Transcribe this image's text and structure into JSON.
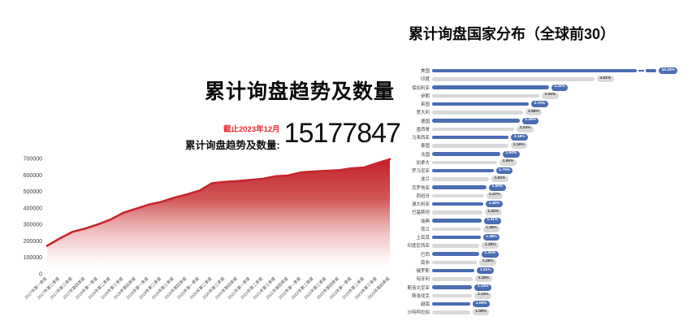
{
  "colors": {
    "bar_blue": "#4a6db3",
    "bar_gray": "#d9d9d9",
    "badge_blue_text": "#ffffff",
    "badge_gray_text": "#3a3a3a",
    "area_red": "#c3232b",
    "line_red": "#c9252c",
    "accent_red_text": "#e4282d",
    "title_text": "#0a0a0a"
  },
  "left_chart": {
    "title": "累计询盘趋势及数量",
    "asof_label": "截止2023年12月",
    "stat_label": "累计询盘趋势及数量:",
    "stat_value": "15177847"
  },
  "right_chart": {
    "title": "累计询盘国家分布（全球前30）"
  },
  "chart_data": [
    {
      "id": "inquiry-trend",
      "type": "area",
      "title": "累计询盘趋势及数量",
      "x": [
        "2017年第一季度",
        "2017年第二季度",
        "2017年第三季度",
        "2017年第四季度",
        "2018年第一季度",
        "2018年第二季度",
        "2018年第三季度",
        "2018年第四季度",
        "2019年第一季度",
        "2019年第二季度",
        "2019年第三季度",
        "2019年第四季度",
        "2020年第一季度",
        "2020年第二季度",
        "2020年第三季度",
        "2020年第四季度",
        "2021年第一季度",
        "2021年第二季度",
        "2021年第三季度",
        "2021年第四季度",
        "2022年第一季度",
        "2022年第二季度",
        "2022年第三季度",
        "2022年第四季度",
        "2023年第一季度",
        "2023年第二季度",
        "2023年第三季度",
        "2023年第四季度"
      ],
      "values": [
        170000,
        215000,
        255000,
        275000,
        300000,
        330000,
        370000,
        395000,
        420000,
        437000,
        462000,
        482000,
        505000,
        550000,
        558000,
        563000,
        570000,
        577000,
        592000,
        597000,
        615000,
        621000,
        625000,
        629000,
        640000,
        646000,
        672000,
        695000
      ],
      "ylim": [
        0,
        700000
      ],
      "yticks": [
        0,
        100000,
        200000,
        300000,
        400000,
        500000,
        600000,
        700000
      ],
      "grid": false,
      "legend": "none",
      "line_color": "#c9252c",
      "fill_style": "vertical red-to-white gradient"
    },
    {
      "id": "inquiry-countries",
      "type": "bar",
      "orientation": "horizontal",
      "title": "累计询盘国家分布（全球前30）",
      "categories": [
        "美国",
        "印度",
        "保加利亚",
        "伊朗",
        "英国",
        "意大利",
        "德国",
        "墨西哥",
        "马来西亚",
        "泰国",
        "法国",
        "加拿大",
        "罗马尼亚",
        "波兰",
        "克罗地亚",
        "西班牙",
        "澳大利亚",
        "巴基斯坦",
        "瑞典",
        "荷兰",
        "土耳其",
        "印度尼西亚",
        "巴西",
        "南非",
        "俄罗斯",
        "匈牙利",
        "斯洛文尼亚",
        "斯洛伐克",
        "越南",
        "沙特阿拉伯"
      ],
      "values": [
        33.18,
        4.62,
        3.32,
        3.05,
        2.75,
        2.58,
        2.49,
        2.34,
        2.18,
        2.16,
        1.94,
        1.85,
        1.75,
        1.62,
        1.55,
        1.47,
        1.46,
        1.43,
        1.41,
        1.38,
        1.38,
        1.35,
        1.34,
        1.28,
        1.21,
        1.16,
        1.14,
        1.14,
        1.09,
        1.08
      ],
      "value_suffix": "%",
      "bar_color_pattern": [
        "#4a6db3",
        "#d9d9d9"
      ],
      "first_bar_truncated_with_axis_break": true,
      "legend": "none",
      "grid": false
    }
  ]
}
